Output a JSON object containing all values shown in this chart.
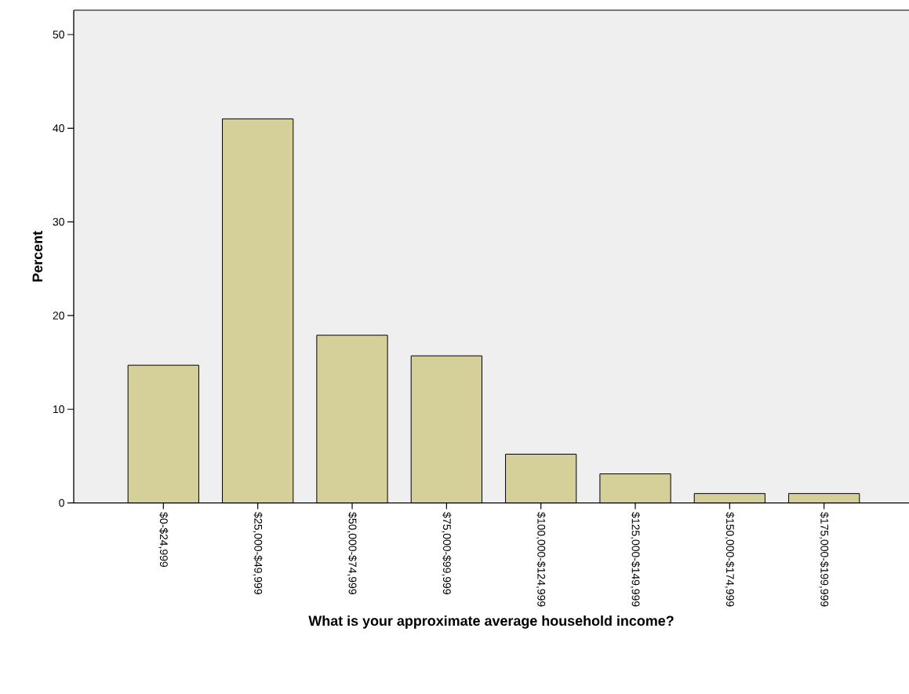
{
  "chart_data": {
    "type": "bar",
    "xlabel": "What is your approximate average household income?",
    "ylabel": "Percent",
    "categories": [
      "$0-$24,999",
      "$25,000-$49,999",
      "$50,000-$74,999",
      "$75,000-$99,999",
      "$100,000-$124,999",
      "$125,000-$149,999",
      "$150,000-$174,999",
      "$175,000-$199,999"
    ],
    "values": [
      14.7,
      41.0,
      17.9,
      15.7,
      5.2,
      3.1,
      1.0,
      1.0
    ],
    "color": "#d5cf99",
    "ylim": [
      0,
      52.6
    ],
    "yticks": [
      0,
      10,
      20,
      30,
      40,
      50
    ]
  }
}
